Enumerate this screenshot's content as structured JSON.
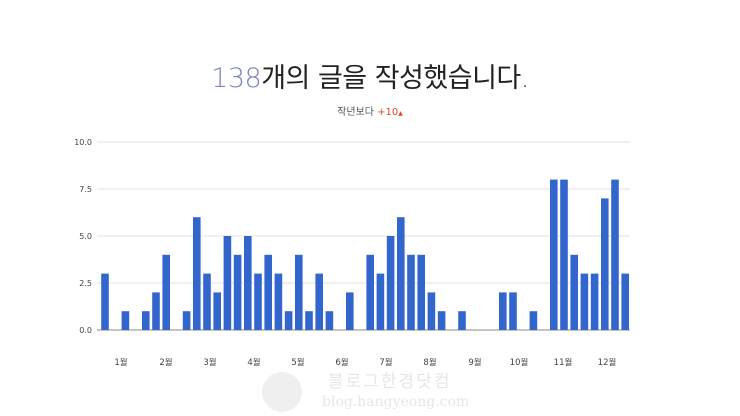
{
  "header": {
    "count": "138",
    "title_suffix": "개의 글을 작성했습니다.",
    "compare_label": "작년보다",
    "compare_delta": "+10",
    "compare_arrow": "▲"
  },
  "watermark": {
    "ko": "블로그한경닷컴",
    "en": "blog.hangyeong.com"
  },
  "colors": {
    "bar": "#3366cc",
    "delta": "#e0452e",
    "count": "#7c84bf",
    "grid": "#e0e0e0",
    "axis": "#888888"
  },
  "chart_data": {
    "type": "bar",
    "title": "",
    "xlabel": "",
    "ylabel": "",
    "ylim": [
      0,
      10
    ],
    "yticks": [
      "0.0",
      "2.5",
      "5.0",
      "7.5",
      "10.0"
    ],
    "ytick_values": [
      0,
      2.5,
      5,
      7.5,
      10
    ],
    "grid": true,
    "month_labels": [
      "1월",
      "2월",
      "3월",
      "4월",
      "5월",
      "6월",
      "7월",
      "8월",
      "9월",
      "10월",
      "11월",
      "12월"
    ],
    "weeks": 52,
    "values": [
      3,
      0,
      1,
      0,
      1,
      2,
      4,
      0,
      1,
      6,
      3,
      2,
      5,
      4,
      5,
      3,
      4,
      3,
      1,
      4,
      1,
      3,
      1,
      0,
      2,
      0,
      4,
      3,
      5,
      6,
      4,
      4,
      2,
      1,
      0,
      1,
      0,
      0,
      0,
      2,
      2,
      0,
      1,
      0,
      8,
      8,
      4,
      3,
      3,
      7,
      8,
      3
    ]
  }
}
